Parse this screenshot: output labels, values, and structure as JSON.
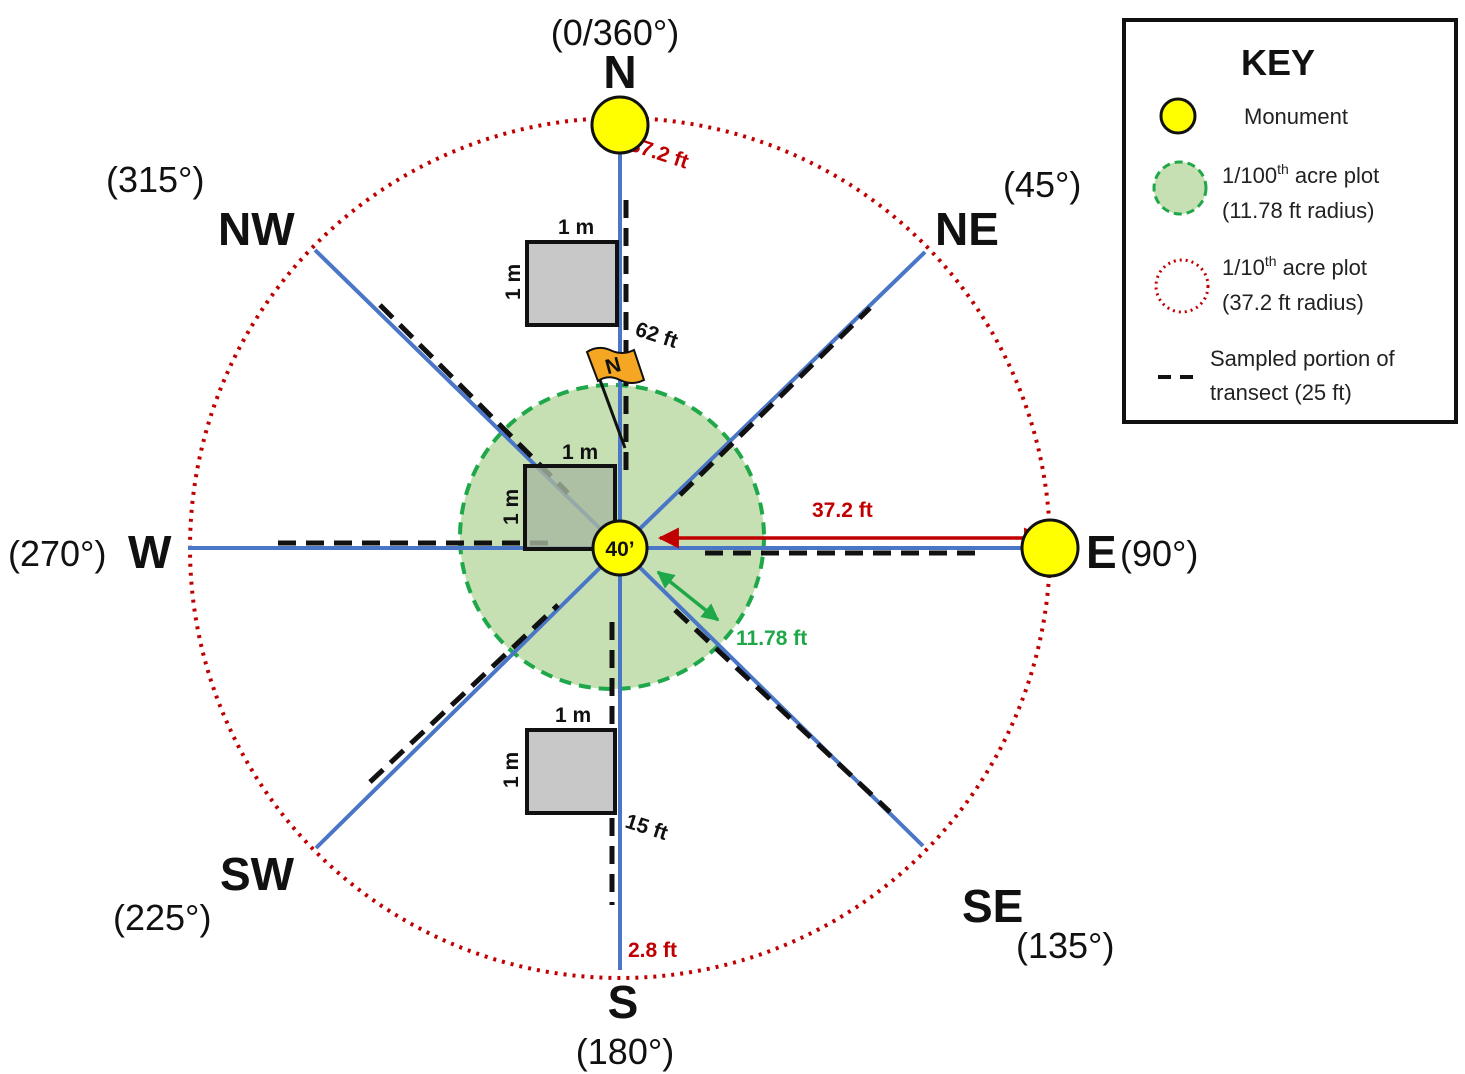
{
  "directions": {
    "n": "N",
    "ne": "NE",
    "e": "E",
    "se": "SE",
    "s": "S",
    "sw": "SW",
    "w": "W",
    "nw": "NW"
  },
  "degrees": {
    "n": "(0/360°)",
    "ne": "(45°)",
    "e": "(90°)",
    "se": "(135°)",
    "s": "(180°)",
    "sw": "(225°)",
    "w": "(270°)",
    "nw": "(315°)"
  },
  "center_label": "40’",
  "flag_label": "N",
  "measurements": {
    "north_monument_offset": "37.2 ft",
    "south_end_offset": "2.8 ft",
    "north_quadrat_distance": "62 ft",
    "south_quadrat_distance": "15 ft",
    "large_radius": "37.2 ft",
    "small_radius": "11.78 ft",
    "quadrat_width": "1 m",
    "quadrat_height": "1 m"
  },
  "key": {
    "title": "KEY",
    "monument": "Monument",
    "small_plot_line1_pre": "1/100",
    "small_plot_line1_sup": "th",
    "small_plot_line1_post": " acre plot",
    "small_plot_line2": "(11.78 ft radius)",
    "large_plot_line1_pre": "1/10",
    "large_plot_line1_sup": "th",
    "large_plot_line1_post": " acre plot",
    "large_plot_line2": "(37.2 ft radius)",
    "sampled_line1": "Sampled portion of",
    "sampled_line2": "transect (25 ft)"
  },
  "colors": {
    "transect": "#4a76c7",
    "outer_circle": "#c00000",
    "inner_fill": "#c6e0b4",
    "inner_border": "#1fa84a",
    "monument": "#ffff00",
    "quadrat": "#c8c8c8",
    "flag": "#f5a623",
    "red_text": "#c00000",
    "green_text": "#1fa84a"
  }
}
